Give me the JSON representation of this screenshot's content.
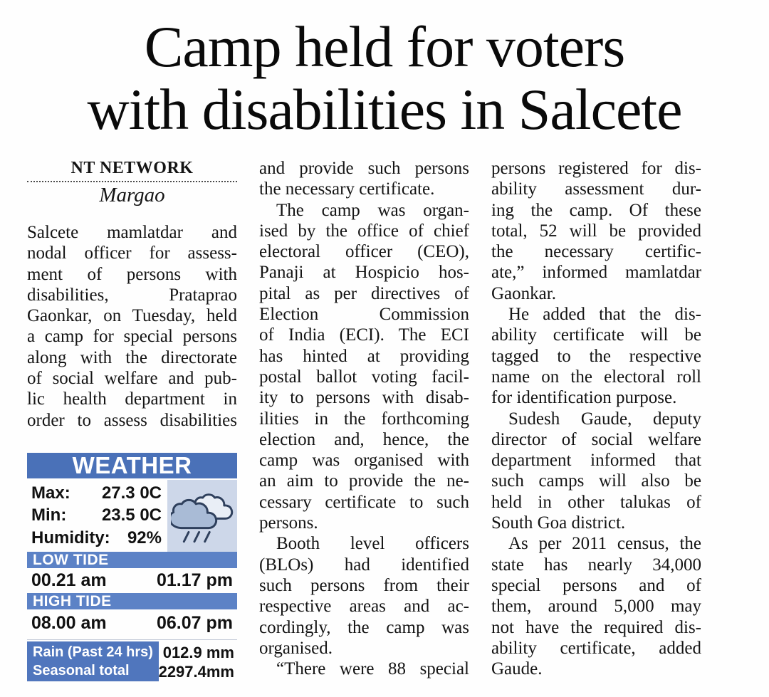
{
  "headline": {
    "line1": "Camp held for voters",
    "line2": "with disabilities in Salcete"
  },
  "byline": {
    "agency": "NT NETWORK",
    "location": "Margao"
  },
  "columns": {
    "col1": [
      {
        "text": "Salcete mamlatdar and"
      },
      {
        "text": "nodal officer for assess-"
      },
      {
        "text": "ment of persons with"
      },
      {
        "text": "disabilities, Prataprao"
      },
      {
        "text": "Gaonkar, on Tuesday, held"
      },
      {
        "text": "a camp for special persons"
      },
      {
        "text": "along with the directorate"
      },
      {
        "text": "of social welfare and pub-"
      },
      {
        "text": "lic health department in"
      },
      {
        "text": "order to assess disabilities"
      }
    ],
    "col2": [
      {
        "text": "and provide such persons"
      },
      {
        "text": "the necessary certificate.",
        "end": true
      },
      {
        "text": "The camp was organ-",
        "indent": true
      },
      {
        "text": "ised by the office of chief"
      },
      {
        "text": "electoral officer (CEO),"
      },
      {
        "text": "Panaji at Hospicio hos-"
      },
      {
        "text": "pital as per directives of"
      },
      {
        "text": "Election Commission"
      },
      {
        "text": "of India (ECI). The ECI"
      },
      {
        "text": "has hinted at providing"
      },
      {
        "text": "postal ballot voting facil-"
      },
      {
        "text": "ity to persons with disab-"
      },
      {
        "text": "ilities in the forthcoming"
      },
      {
        "text": "election and, hence, the"
      },
      {
        "text": "camp was organised with"
      },
      {
        "text": "an aim to provide the ne-"
      },
      {
        "text": "cessary certificate to such"
      },
      {
        "text": "persons.",
        "end": true
      },
      {
        "text": "Booth level officers",
        "indent": true
      },
      {
        "text": "(BLOs) had identified"
      },
      {
        "text": "such persons from their"
      },
      {
        "text": "respective areas and ac-"
      },
      {
        "text": "cordingly, the camp was"
      },
      {
        "text": "organised.",
        "end": true
      },
      {
        "text": "“There were 88 special",
        "indent": true
      }
    ],
    "col3": [
      {
        "text": "persons registered for dis-"
      },
      {
        "text": "ability assessment dur-"
      },
      {
        "text": "ing the camp. Of these"
      },
      {
        "text": "total, 52 will be provided"
      },
      {
        "text": "the necessary certific-"
      },
      {
        "text": "ate,” informed mamlatdar"
      },
      {
        "text": "Gaonkar.",
        "end": true
      },
      {
        "text": "He added that the dis-",
        "indent": true
      },
      {
        "text": "ability certificate will be"
      },
      {
        "text": "tagged to the respective"
      },
      {
        "text": "name on the electoral roll"
      },
      {
        "text": "for identification purpose.",
        "end": true
      },
      {
        "text": "Sudesh Gaude, deputy",
        "indent": true
      },
      {
        "text": "director of social welfare"
      },
      {
        "text": "department informed that"
      },
      {
        "text": "such camps will also be"
      },
      {
        "text": "held in other talukas of"
      },
      {
        "text": "South Goa district.",
        "end": true
      },
      {
        "text": "As per 2011 census, the",
        "indent": true
      },
      {
        "text": "state has nearly 34,000"
      },
      {
        "text": "special persons and of"
      },
      {
        "text": "them, around 5,000 may"
      },
      {
        "text": "not have the required dis-"
      },
      {
        "text": "ability certificate, added"
      },
      {
        "text": "Gaude.",
        "end": true
      }
    ]
  },
  "weather": {
    "title": "WEATHER",
    "readings": [
      {
        "label": "Max:",
        "value": "27.3 0C"
      },
      {
        "label": "Min:",
        "value": "23.5 0C"
      },
      {
        "label": "Humidity:",
        "value": "92%"
      }
    ],
    "low_tide": {
      "title": "LOW TIDE",
      "am": "00.21 am",
      "pm": "01.17 pm"
    },
    "high_tide": {
      "title": "HIGH TIDE",
      "am": "08.00 am",
      "pm": "06.07 pm"
    },
    "rain": {
      "row1_label": "Rain (Past 24 hrs)",
      "row1_value": "012.9 mm",
      "row2_label": "Seasonal total",
      "row2_value": "2297.4mm"
    },
    "icon": "rain-clouds-icon",
    "colors": {
      "header_blue": "#4a71b8",
      "bar_blue": "#5c82c6",
      "rain_blue": "#5076bd",
      "panel_blue": "#cdd7e9",
      "cloud_fill": "#a9bbd6",
      "cloud_outline": "#2e3f5c"
    }
  }
}
